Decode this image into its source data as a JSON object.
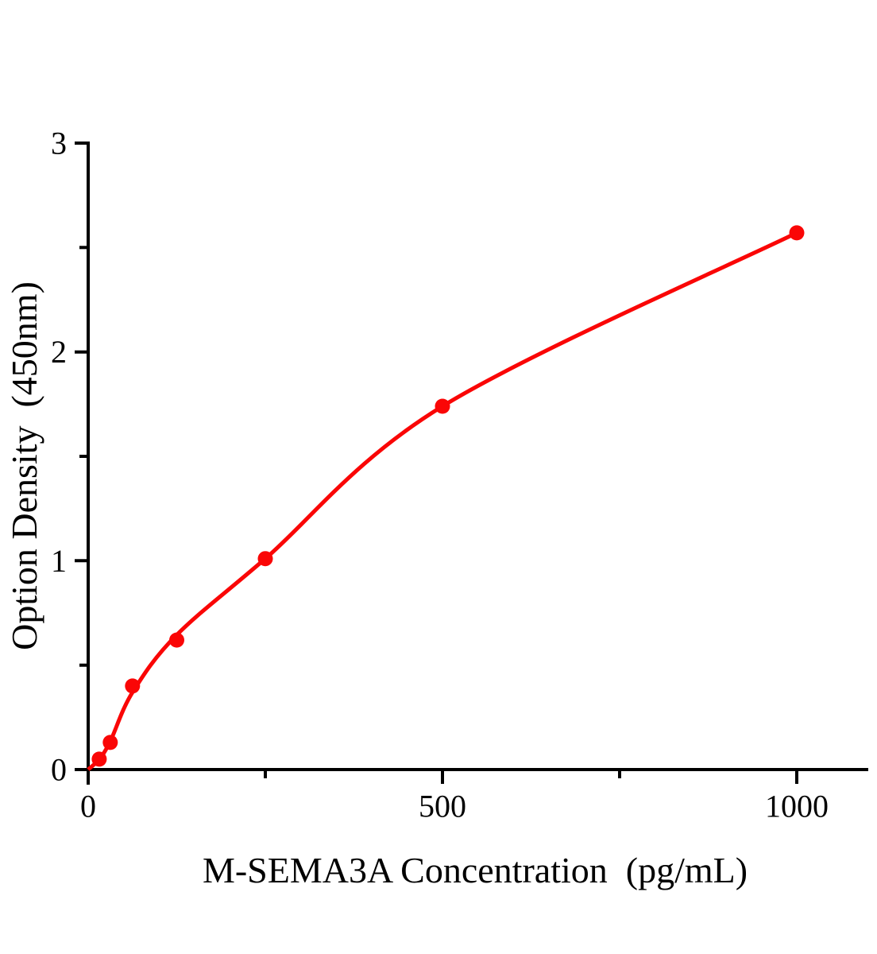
{
  "chart_data": {
    "type": "scatter",
    "title": "",
    "xlabel": "M-SEMA3A Concentration（pg/mL）",
    "ylabel": "Option Density（450nm）",
    "xlim": [
      0,
      1100
    ],
    "ylim": [
      0,
      3
    ],
    "grid": false,
    "legend": null,
    "x_ticks_major": [
      0,
      500,
      1000
    ],
    "x_tick_labels": [
      "0",
      "500",
      "1000"
    ],
    "x_ticks_minor": [
      250,
      750
    ],
    "y_ticks_major": [
      0,
      1,
      2,
      3
    ],
    "y_tick_labels": [
      "0",
      "1",
      "2",
      "3"
    ],
    "y_ticks_minor": [
      0.5,
      1.5,
      2.5
    ],
    "series": [
      {
        "marker": "circle",
        "color": "#fa0606",
        "points": [
          {
            "x": 15.6,
            "y": 0.05
          },
          {
            "x": 31.2,
            "y": 0.13
          },
          {
            "x": 62.5,
            "y": 0.4
          },
          {
            "x": 125,
            "y": 0.62
          },
          {
            "x": 250,
            "y": 1.01
          },
          {
            "x": 500,
            "y": 1.74
          },
          {
            "x": 1000,
            "y": 2.57
          }
        ]
      }
    ],
    "fit_curve": {
      "color": "#fa0606",
      "points": [
        {
          "x": 0,
          "y": 0.0
        },
        {
          "x": 15.6,
          "y": 0.05
        },
        {
          "x": 31.2,
          "y": 0.135
        },
        {
          "x": 62.5,
          "y": 0.37
        },
        {
          "x": 125,
          "y": 0.645
        },
        {
          "x": 250,
          "y": 1.01
        },
        {
          "x": 500,
          "y": 1.74
        },
        {
          "x": 1000,
          "y": 2.57
        }
      ]
    },
    "axis_color": "#000000",
    "background_color": "#ffffff"
  }
}
